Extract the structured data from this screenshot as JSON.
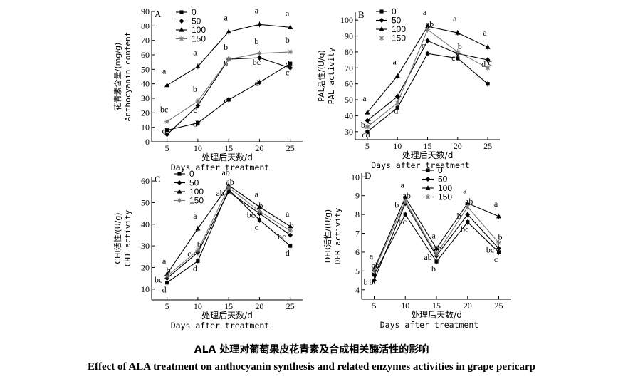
{
  "caption": {
    "cn": "ALA 处理对葡萄果皮花青素及合成相关酶活性的影响",
    "en": "Effect of ALA treatment on anthocyanin synthesis and related enzymes activities in grape pericarp"
  },
  "series_colors": [
    "#000000",
    "#000000",
    "#000000",
    "#777777"
  ],
  "chart_data": [
    {
      "type": "line",
      "panel": "A",
      "ylabel_cn": "花青素含量/(mg/g)",
      "ylabel_en": "Anthocyanin content",
      "xlabel_cn": "处理后天数/d",
      "xlabel_en": "Days after treatment",
      "x": [
        5,
        10,
        15,
        20,
        25
      ],
      "xlim": [
        2.5,
        27
      ],
      "ylim": [
        0,
        90
      ],
      "yticks": [
        0,
        10,
        20,
        30,
        40,
        50,
        60,
        70,
        80,
        90
      ],
      "legend": [
        "0",
        "50",
        "100",
        "150"
      ],
      "series": [
        {
          "name": "0",
          "marker": "square",
          "values": [
            8,
            13,
            29,
            41,
            54
          ],
          "letters": [
            "d",
            "d",
            "c",
            "d",
            "d"
          ]
        },
        {
          "name": "50",
          "marker": "diamond",
          "values": [
            5,
            25,
            57,
            58,
            51
          ],
          "letters": [
            "",
            "c",
            "b",
            "bc",
            "c"
          ]
        },
        {
          "name": "100",
          "marker": "triangle",
          "values": [
            39,
            52,
            76,
            81,
            79
          ],
          "letters": [
            "a",
            "a",
            "a",
            "a",
            "a"
          ]
        },
        {
          "name": "150",
          "marker": "star",
          "values": [
            14,
            28,
            57,
            61,
            62
          ],
          "letters": [
            "bc",
            "b",
            "b",
            "b",
            "b"
          ]
        }
      ]
    },
    {
      "type": "line",
      "panel": "B",
      "ylabel_cn": "PAL活性/(U/g)",
      "ylabel_en": "PAL activity",
      "xlabel_cn": "处理后天数/d",
      "xlabel_en": "Days after treatment",
      "x": [
        5,
        10,
        15,
        20,
        25
      ],
      "xlim": [
        3,
        27
      ],
      "ylim": [
        25,
        105
      ],
      "yticks": [
        30,
        40,
        50,
        60,
        70,
        80,
        90,
        100
      ],
      "legend": [
        "0",
        "50",
        "100",
        "150"
      ],
      "series": [
        {
          "name": "0",
          "marker": "square",
          "values": [
            30,
            45,
            79,
            76,
            60
          ],
          "letters": [
            "cd",
            "d",
            "",
            "",
            ""
          ]
        },
        {
          "name": "50",
          "marker": "diamond",
          "values": [
            37,
            52,
            87,
            79,
            75
          ],
          "letters": [
            "b",
            "",
            "c",
            "c",
            "d"
          ]
        },
        {
          "name": "100",
          "marker": "triangle",
          "values": [
            42,
            65,
            96,
            92,
            83
          ],
          "letters": [
            "a",
            "a",
            "a",
            "a",
            "a"
          ]
        },
        {
          "name": "150",
          "marker": "star",
          "values": [
            33,
            48,
            94,
            80,
            70
          ],
          "letters": [
            "c",
            "c",
            "ab",
            "b",
            "c"
          ]
        }
      ]
    },
    {
      "type": "line",
      "panel": "C",
      "ylabel_cn": "CHI活性/(U/g)",
      "ylabel_en": "CHI activity",
      "xlabel_cn": "处理后天数/d",
      "xlabel_en": "Days after treatment",
      "x": [
        5,
        10,
        15,
        20,
        25
      ],
      "xlim": [
        2.5,
        27
      ],
      "ylim": [
        5,
        62
      ],
      "yticks": [
        10,
        20,
        30,
        40,
        50,
        60
      ],
      "legend": [
        "0",
        "50",
        "100",
        "150"
      ],
      "series": [
        {
          "name": "0",
          "marker": "square",
          "values": [
            13,
            23,
            56,
            42,
            30
          ],
          "letters": [
            "d",
            "d",
            "",
            "c",
            "d"
          ]
        },
        {
          "name": "50",
          "marker": "diamond",
          "values": [
            15,
            27,
            55,
            45,
            35
          ],
          "letters": [
            "bc",
            "c",
            "ab",
            "bc",
            "bc"
          ]
        },
        {
          "name": "100",
          "marker": "triangle",
          "values": [
            17,
            38,
            58,
            48,
            39
          ],
          "letters": [
            "a",
            "a",
            "ab",
            "a",
            "a"
          ]
        },
        {
          "name": "150",
          "marker": "star",
          "values": [
            16,
            28,
            57,
            46,
            37
          ],
          "letters": [
            "b",
            "b",
            "ab",
            "b",
            "b"
          ]
        }
      ]
    },
    {
      "type": "line",
      "panel": "D",
      "ylabel_cn": "DFR活性/(U/g)",
      "ylabel_en": "DFR activity",
      "xlabel_cn": "处理后天数/d",
      "xlabel_en": "Days after treatment",
      "x": [
        5,
        10,
        15,
        20,
        25
      ],
      "xlim": [
        3,
        27
      ],
      "ylim": [
        3.5,
        10.2
      ],
      "yticks": [
        4,
        5,
        6,
        7,
        8,
        9,
        10
      ],
      "legend": [
        "0",
        "50",
        "100",
        "150"
      ],
      "series": [
        {
          "name": "0",
          "marker": "square",
          "values": [
            4.8,
            8.0,
            5.5,
            7.6,
            6.0
          ],
          "letters": [
            "b",
            "bc",
            "b",
            "bc",
            "c"
          ]
        },
        {
          "name": "50",
          "marker": "diamond",
          "values": [
            4.5,
            8.6,
            5.8,
            8.0,
            6.2
          ],
          "letters": [
            "b",
            "b",
            "ab",
            "b",
            "bc"
          ]
        },
        {
          "name": "100",
          "marker": "triangle",
          "values": [
            5.1,
            8.9,
            6.2,
            8.6,
            7.9
          ],
          "letters": [
            "a",
            "a",
            "a",
            "a",
            "a"
          ]
        },
        {
          "name": "150",
          "marker": "star",
          "values": [
            5.0,
            8.7,
            5.9,
            8.4,
            6.5
          ],
          "letters": [
            "ab",
            "ab",
            "ab",
            "ab",
            "b"
          ]
        }
      ]
    }
  ]
}
